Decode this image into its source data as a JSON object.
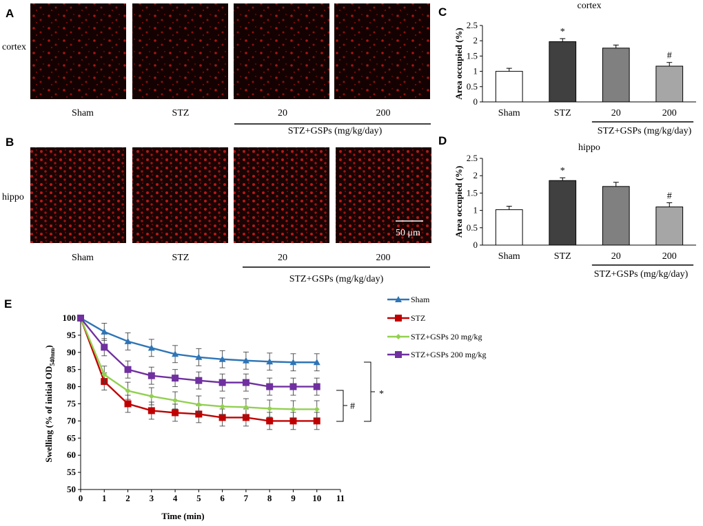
{
  "panels": {
    "A": "A",
    "B": "B",
    "C": "C",
    "D": "D",
    "E": "E"
  },
  "micrographs": {
    "row_a_label": "cortex",
    "row_b_label": "hippo",
    "groups": [
      "Sham",
      "STZ",
      "20",
      "200"
    ],
    "bracket_label": "STZ+GSPs (mg/kg/day)",
    "scale_bar": "50 μm"
  },
  "colors": {
    "micro_bg": "#140202",
    "micro_dot": "#c21616",
    "sham": "#2e75b6",
    "stz": "#c00000",
    "gsp20": "#92d050",
    "gsp200": "#7030a0"
  },
  "chart_data": [
    {
      "panel": "C",
      "type": "bar",
      "title": "cortex",
      "categories": [
        "Sham",
        "STZ",
        "20",
        "200"
      ],
      "values": [
        1.0,
        1.97,
        1.76,
        1.17
      ],
      "errors": [
        0.1,
        0.1,
        0.1,
        0.12
      ],
      "annotations": [
        "",
        "*",
        "",
        "#"
      ],
      "bar_colors": [
        "#ffffff",
        "#404040",
        "#808080",
        "#a6a6a6"
      ],
      "ylabel": "Area occupied (%)",
      "ylim": [
        0,
        2.5
      ],
      "yticks": [
        "0",
        "0.5",
        "1",
        "1.5",
        "2",
        "2.5"
      ],
      "bracket_label": "STZ+GSPs (mg/kg/day)"
    },
    {
      "panel": "D",
      "type": "bar",
      "title": "hippo",
      "categories": [
        "Sham",
        "STZ",
        "20",
        "200"
      ],
      "values": [
        1.02,
        1.86,
        1.69,
        1.1
      ],
      "errors": [
        0.1,
        0.08,
        0.12,
        0.12
      ],
      "annotations": [
        "",
        "*",
        "",
        "#"
      ],
      "bar_colors": [
        "#ffffff",
        "#404040",
        "#808080",
        "#a6a6a6"
      ],
      "ylabel": "Area occupied (%)",
      "ylim": [
        0,
        2.5
      ],
      "yticks": [
        "0",
        "0.5",
        "1",
        "1.5",
        "2",
        "2.5"
      ],
      "bracket_label": "STZ+GSPs (mg/kg/day)"
    },
    {
      "panel": "E",
      "type": "line",
      "x": [
        0,
        1,
        2,
        3,
        4,
        5,
        6,
        7,
        8,
        9,
        10
      ],
      "xlim": [
        0,
        11
      ],
      "ylim": [
        50,
        100
      ],
      "xticks": [
        "0",
        "1",
        "2",
        "3",
        "4",
        "5",
        "6",
        "7",
        "8",
        "9",
        "10",
        "11"
      ],
      "yticks": [
        "50",
        "55",
        "60",
        "65",
        "70",
        "75",
        "80",
        "85",
        "90",
        "95",
        "100"
      ],
      "xlabel": "Time (min)",
      "ylabel_main": "Swelling (% of initial OD",
      "ylabel_sub": "540nm",
      "ylabel_end": ")",
      "error": 2.5,
      "series": [
        {
          "name": "Sham",
          "marker": "triangle",
          "color": "#2e75b6",
          "values": [
            100,
            96,
            93.2,
            91.3,
            89.5,
            88.6,
            88,
            87.6,
            87.3,
            87.1,
            87.1
          ]
        },
        {
          "name": "STZ",
          "marker": "square",
          "color": "#c00000",
          "values": [
            100,
            81.5,
            75,
            73,
            72.4,
            72,
            71,
            71,
            70,
            70,
            70
          ]
        },
        {
          "name": "STZ+GSPs 20 mg/kg",
          "marker": "diamond",
          "color": "#92d050",
          "values": [
            100,
            83.5,
            78.8,
            77.2,
            76,
            74.8,
            74.2,
            74,
            73.6,
            73.4,
            73.4
          ]
        },
        {
          "name": "STZ+GSPs 200 mg/kg",
          "marker": "square",
          "color": "#7030a0",
          "values": [
            100,
            91.5,
            85,
            83.2,
            82.5,
            81.8,
            81.2,
            81.2,
            80,
            80,
            80
          ]
        }
      ],
      "sig_hash": "#",
      "sig_star": "*"
    }
  ]
}
